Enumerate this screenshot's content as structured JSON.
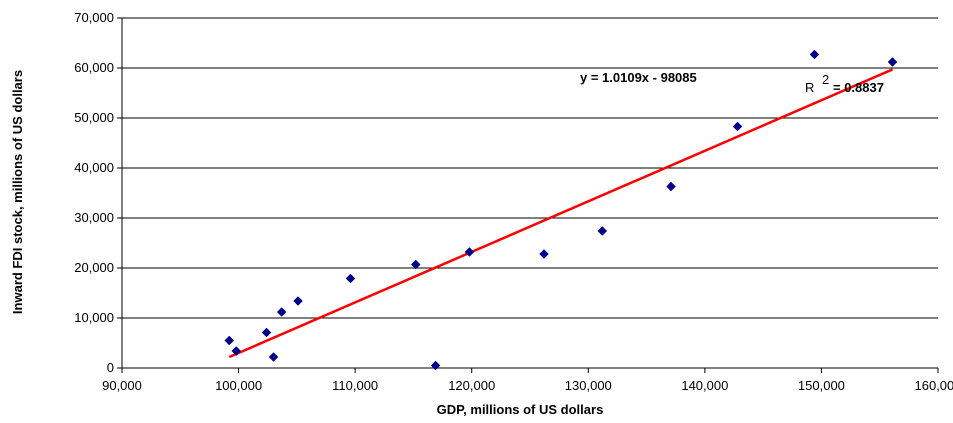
{
  "chart_data": {
    "type": "scatter",
    "title": "",
    "xlabel": "GDP, millions of US dollars",
    "ylabel": "Inward FDI stock, millions of US dollars",
    "xlim": [
      90000,
      160000
    ],
    "ylim": [
      0,
      70000
    ],
    "x_ticks": [
      "90,000",
      "100,000",
      "110,000",
      "120,000",
      "130,000",
      "140,000",
      "150,000",
      "160,000"
    ],
    "y_ticks": [
      "0",
      "10,000",
      "20,000",
      "30,000",
      "40,000",
      "50,000",
      "60,000",
      "70,000"
    ],
    "grid": "horizontal",
    "legend": "none",
    "series": [
      {
        "points": [
          {
            "x": 99200,
            "y": 5500
          },
          {
            "x": 99800,
            "y": 3400
          },
          {
            "x": 102400,
            "y": 7100
          },
          {
            "x": 103000,
            "y": 2200
          },
          {
            "x": 103700,
            "y": 11200
          },
          {
            "x": 105100,
            "y": 13400
          },
          {
            "x": 109600,
            "y": 17900
          },
          {
            "x": 115200,
            "y": 20700
          },
          {
            "x": 116900,
            "y": 500
          },
          {
            "x": 119800,
            "y": 23200
          },
          {
            "x": 126200,
            "y": 22800
          },
          {
            "x": 131200,
            "y": 27400
          },
          {
            "x": 137100,
            "y": 36300
          },
          {
            "x": 142800,
            "y": 48300
          },
          {
            "x": 149400,
            "y": 62700
          },
          {
            "x": 156100,
            "y": 61200
          }
        ],
        "color": "#00008B",
        "marker": "diamond"
      }
    ],
    "trendline": {
      "type": "linear",
      "slope": 1.0109,
      "intercept": -98085,
      "x_range": [
        99200,
        156100
      ],
      "color": "#FF0000",
      "equation_label": "y = 1.0109x - 98085",
      "r2_prefix": "R",
      "r2_superscript": "2",
      "r2_value": "= 0.8837"
    }
  }
}
